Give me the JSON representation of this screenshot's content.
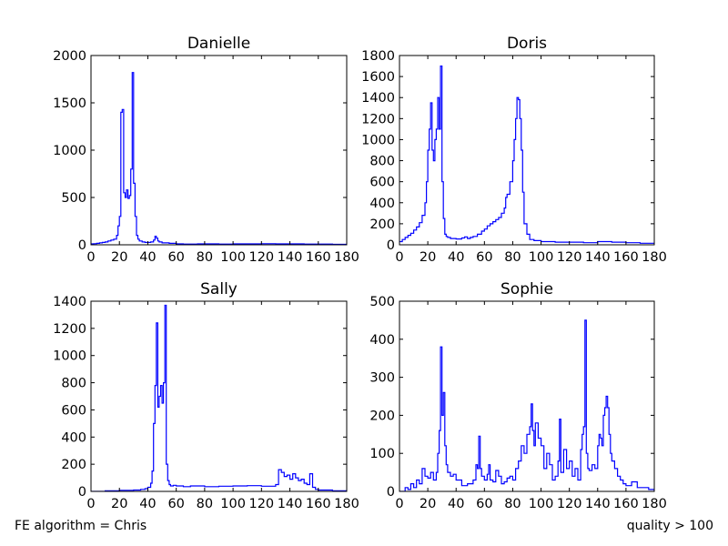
{
  "footer": {
    "left_text": "FE algorithm = Chris",
    "right_text": "quality > 100"
  },
  "colors": {
    "line": "#0000ff",
    "axes": "#000000",
    "background": "#ffffff"
  },
  "chart_data": [
    {
      "type": "step",
      "title": "Danielle",
      "xlim": [
        0,
        180
      ],
      "ylim": [
        0,
        2000
      ],
      "xticks": [
        0,
        20,
        40,
        60,
        80,
        100,
        120,
        140,
        160,
        180
      ],
      "yticks": [
        0,
        500,
        1000,
        1500,
        2000
      ],
      "grid": false,
      "x": [
        0,
        2,
        4,
        6,
        8,
        10,
        12,
        14,
        16,
        18,
        19,
        20,
        21,
        22,
        23,
        24,
        25,
        26,
        27,
        28,
        29,
        30,
        31,
        32,
        33,
        34,
        36,
        38,
        40,
        42,
        44,
        45,
        46,
        47,
        48,
        50,
        55,
        60,
        65,
        70,
        75,
        80,
        90,
        100,
        110,
        120,
        130,
        140,
        150,
        160,
        170,
        180
      ],
      "y": [
        10,
        12,
        15,
        20,
        25,
        30,
        40,
        50,
        60,
        100,
        200,
        300,
        1400,
        1430,
        550,
        500,
        580,
        490,
        520,
        800,
        1820,
        650,
        300,
        100,
        60,
        40,
        30,
        25,
        25,
        30,
        50,
        90,
        70,
        40,
        30,
        20,
        15,
        10,
        8,
        8,
        10,
        10,
        8,
        10,
        10,
        12,
        10,
        10,
        8,
        8,
        5,
        0
      ]
    },
    {
      "type": "step",
      "title": "Doris",
      "xlim": [
        0,
        180
      ],
      "ylim": [
        0,
        1800
      ],
      "xticks": [
        0,
        20,
        40,
        60,
        80,
        100,
        120,
        140,
        160,
        180
      ],
      "yticks": [
        0,
        200,
        400,
        600,
        800,
        1000,
        1200,
        1400,
        1600,
        1800
      ],
      "grid": false,
      "x": [
        0,
        2,
        4,
        6,
        8,
        10,
        12,
        14,
        16,
        18,
        19,
        20,
        21,
        22,
        23,
        24,
        25,
        26,
        27,
        28,
        29,
        30,
        31,
        32,
        33,
        34,
        36,
        38,
        40,
        42,
        44,
        46,
        48,
        50,
        52,
        55,
        58,
        60,
        62,
        64,
        66,
        68,
        70,
        72,
        74,
        75,
        76,
        78,
        80,
        81,
        82,
        83,
        84,
        85,
        86,
        87,
        88,
        90,
        92,
        95,
        100,
        110,
        120,
        130,
        140,
        150,
        160,
        170,
        180
      ],
      "y": [
        30,
        50,
        70,
        90,
        110,
        140,
        170,
        210,
        280,
        400,
        600,
        900,
        1100,
        1350,
        900,
        800,
        1000,
        1100,
        1400,
        1100,
        1700,
        600,
        250,
        100,
        80,
        70,
        60,
        60,
        55,
        55,
        65,
        75,
        60,
        70,
        80,
        100,
        130,
        150,
        180,
        200,
        220,
        240,
        260,
        300,
        350,
        450,
        480,
        600,
        800,
        1000,
        1200,
        1400,
        1380,
        1200,
        900,
        500,
        200,
        100,
        50,
        40,
        30,
        25,
        25,
        20,
        30,
        25,
        20,
        15,
        10
      ]
    },
    {
      "type": "step",
      "title": "Sally",
      "xlim": [
        0,
        180
      ],
      "ylim": [
        0,
        1400
      ],
      "xticks": [
        0,
        20,
        40,
        60,
        80,
        100,
        120,
        140,
        160,
        180
      ],
      "yticks": [
        0,
        200,
        400,
        600,
        800,
        1000,
        1200,
        1400
      ],
      "grid": false,
      "x": [
        0,
        10,
        20,
        30,
        35,
        38,
        40,
        42,
        43,
        44,
        45,
        46,
        47,
        48,
        49,
        50,
        51,
        52,
        53,
        54,
        55,
        56,
        58,
        60,
        65,
        70,
        80,
        90,
        100,
        110,
        120,
        130,
        132,
        134,
        136,
        138,
        140,
        142,
        144,
        146,
        148,
        150,
        152,
        154,
        156,
        158,
        160,
        170,
        180
      ],
      "y": [
        0,
        5,
        8,
        10,
        15,
        20,
        30,
        60,
        150,
        500,
        780,
        1240,
        620,
        700,
        780,
        650,
        800,
        1370,
        200,
        80,
        50,
        40,
        45,
        40,
        35,
        40,
        35,
        38,
        40,
        42,
        38,
        50,
        160,
        140,
        110,
        120,
        90,
        130,
        100,
        80,
        90,
        60,
        50,
        130,
        30,
        15,
        10,
        5,
        0
      ]
    },
    {
      "type": "step",
      "title": "Sophie",
      "xlim": [
        0,
        180
      ],
      "ylim": [
        0,
        500
      ],
      "xticks": [
        0,
        20,
        40,
        60,
        80,
        100,
        120,
        140,
        160,
        180
      ],
      "yticks": [
        0,
        100,
        200,
        300,
        400,
        500
      ],
      "grid": false,
      "x": [
        0,
        4,
        6,
        8,
        10,
        12,
        14,
        16,
        18,
        20,
        22,
        24,
        26,
        27,
        28,
        29,
        30,
        31,
        32,
        33,
        34,
        36,
        38,
        40,
        44,
        48,
        52,
        54,
        55,
        56,
        57,
        58,
        60,
        62,
        63,
        64,
        66,
        68,
        70,
        72,
        74,
        76,
        78,
        80,
        82,
        84,
        86,
        88,
        90,
        92,
        93,
        94,
        95,
        96,
        98,
        100,
        102,
        104,
        106,
        108,
        110,
        112,
        113,
        114,
        116,
        118,
        120,
        122,
        124,
        126,
        128,
        129,
        130,
        131,
        132,
        133,
        134,
        136,
        138,
        140,
        141,
        142,
        143,
        144,
        145,
        146,
        147,
        148,
        149,
        150,
        152,
        154,
        156,
        158,
        160,
        164,
        168,
        172,
        176,
        180
      ],
      "y": [
        0,
        10,
        5,
        20,
        10,
        30,
        20,
        60,
        40,
        35,
        50,
        30,
        50,
        100,
        160,
        380,
        200,
        260,
        120,
        70,
        50,
        40,
        45,
        30,
        15,
        20,
        30,
        70,
        60,
        145,
        60,
        40,
        30,
        45,
        70,
        30,
        25,
        55,
        40,
        20,
        25,
        35,
        40,
        30,
        60,
        80,
        120,
        100,
        150,
        170,
        230,
        160,
        120,
        180,
        140,
        120,
        60,
        100,
        70,
        30,
        40,
        80,
        190,
        50,
        110,
        60,
        80,
        40,
        60,
        30,
        110,
        150,
        170,
        450,
        100,
        60,
        55,
        70,
        60,
        120,
        150,
        140,
        120,
        200,
        220,
        250,
        220,
        150,
        100,
        80,
        60,
        40,
        30,
        20,
        15,
        25,
        10,
        10,
        5,
        0
      ]
    }
  ]
}
